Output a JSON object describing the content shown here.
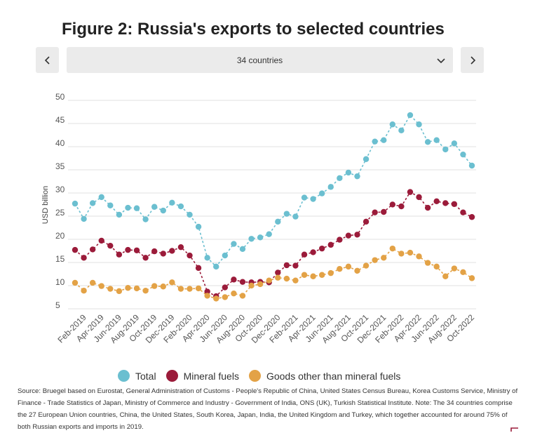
{
  "title": "Figure 2: Russia's exports to selected countries",
  "selector": {
    "value": "34 countries"
  },
  "colors": {
    "total": "#6bbfd0",
    "mineral": "#9b1b3a",
    "goods": "#e3a246",
    "grid": "#e2e2e2",
    "axis_text": "#555555"
  },
  "legend": [
    {
      "label": "Total",
      "color": "#6bbfd0"
    },
    {
      "label": "Mineral fuels",
      "color": "#9b1b3a"
    },
    {
      "label": "Goods other than mineral fuels",
      "color": "#e3a246"
    }
  ],
  "source": "Source: Bruegel based on Eurostat, General Administration of Customs - People's Republic of China, United States Census Bureau, Korea Customs Service, Ministry of Finance - Trade Statistics of Japan, Ministry of Commerce and Industry - Government of India, ONS (UK), Turkish Statistical Institute. Note: The 34 countries comprise the 27 European Union countries, China, the United States, South Korea, Japan, India, the United Kingdom and Turkey, which together accounted for around 75% of both Russian exports and imports in 2019.",
  "chart_data": {
    "type": "line",
    "title": "Figure 2: Russia's exports to selected countries",
    "xlabel": "",
    "ylabel": "USD billion",
    "ylim": [
      5,
      50
    ],
    "yticks": [
      5,
      10,
      15,
      20,
      25,
      30,
      35,
      40,
      45,
      50
    ],
    "grid": true,
    "x": [
      "Jan-2019",
      "Feb-2019",
      "Mar-2019",
      "Apr-2019",
      "May-2019",
      "Jun-2019",
      "Jul-2019",
      "Aug-2019",
      "Sep-2019",
      "Oct-2019",
      "Nov-2019",
      "Dec-2019",
      "Jan-2020",
      "Feb-2020",
      "Mar-2020",
      "Apr-2020",
      "May-2020",
      "Jun-2020",
      "Jul-2020",
      "Aug-2020",
      "Sep-2020",
      "Oct-2020",
      "Nov-2020",
      "Dec-2020",
      "Jan-2021",
      "Feb-2021",
      "Mar-2021",
      "Apr-2021",
      "May-2021",
      "Jun-2021",
      "Jul-2021",
      "Aug-2021",
      "Sep-2021",
      "Oct-2021",
      "Nov-2021",
      "Dec-2021",
      "Jan-2022",
      "Feb-2022",
      "Mar-2022",
      "Apr-2022",
      "May-2022",
      "Jun-2022",
      "Jul-2022",
      "Aug-2022",
      "Sep-2022",
      "Oct-2022"
    ],
    "xtick_labels": [
      "Feb-2019",
      "Apr-2019",
      "Jun-2019",
      "Aug-2019",
      "Oct-2019",
      "Dec-2019",
      "Feb-2020",
      "Apr-2020",
      "Jun-2020",
      "Aug-2020",
      "Oct-2020",
      "Dec-2020",
      "Feb-2021",
      "Apr-2021",
      "Jun-2021",
      "Aug-2021",
      "Oct-2021",
      "Dec-2021",
      "Feb-2022",
      "Apr-2022",
      "Jun-2022",
      "Aug-2022",
      "Oct-2022"
    ],
    "series": [
      {
        "name": "Total",
        "values": [
          26.8,
          23.5,
          26.9,
          28.2,
          26.4,
          24.4,
          25.9,
          25.8,
          23.4,
          26.1,
          25.3,
          27.0,
          26.2,
          24.4,
          21.8,
          15.1,
          13.2,
          15.6,
          18.1,
          17.0,
          19.2,
          19.5,
          20.2,
          22.9,
          24.6,
          24.0,
          28.1,
          27.8,
          29.0,
          30.4,
          32.3,
          33.5,
          32.7,
          36.4,
          40.2,
          40.5,
          43.9,
          42.6,
          45.9,
          43.9,
          40.1,
          40.5,
          38.5,
          39.8,
          37.4,
          35.0
        ]
      },
      {
        "name": "Mineral fuels",
        "values": [
          16.8,
          15.1,
          16.9,
          18.8,
          17.7,
          15.8,
          16.8,
          16.7,
          15.1,
          16.5,
          16.0,
          16.6,
          17.4,
          15.6,
          12.9,
          7.8,
          6.8,
          8.7,
          10.4,
          9.9,
          9.8,
          9.9,
          9.8,
          11.9,
          13.5,
          13.4,
          15.8,
          16.3,
          17.1,
          17.9,
          19.0,
          19.9,
          20.1,
          22.9,
          24.9,
          25.0,
          26.6,
          26.2,
          29.3,
          28.2,
          25.9,
          27.3,
          26.9,
          26.7,
          24.9,
          23.9
        ]
      },
      {
        "name": "Goods other than mineral fuels",
        "values": [
          9.7,
          8.0,
          9.7,
          9.0,
          8.4,
          7.9,
          8.6,
          8.5,
          8.0,
          9.0,
          8.9,
          9.8,
          8.4,
          8.4,
          8.5,
          6.9,
          6.3,
          6.6,
          7.4,
          6.9,
          9.1,
          9.4,
          10.2,
          10.8,
          10.6,
          10.2,
          11.4,
          11.1,
          11.4,
          11.8,
          12.7,
          13.2,
          12.3,
          13.4,
          14.6,
          15.1,
          17.1,
          16.0,
          16.2,
          15.4,
          14.0,
          13.2,
          11.1,
          12.8,
          12.0,
          10.7
        ]
      }
    ]
  }
}
